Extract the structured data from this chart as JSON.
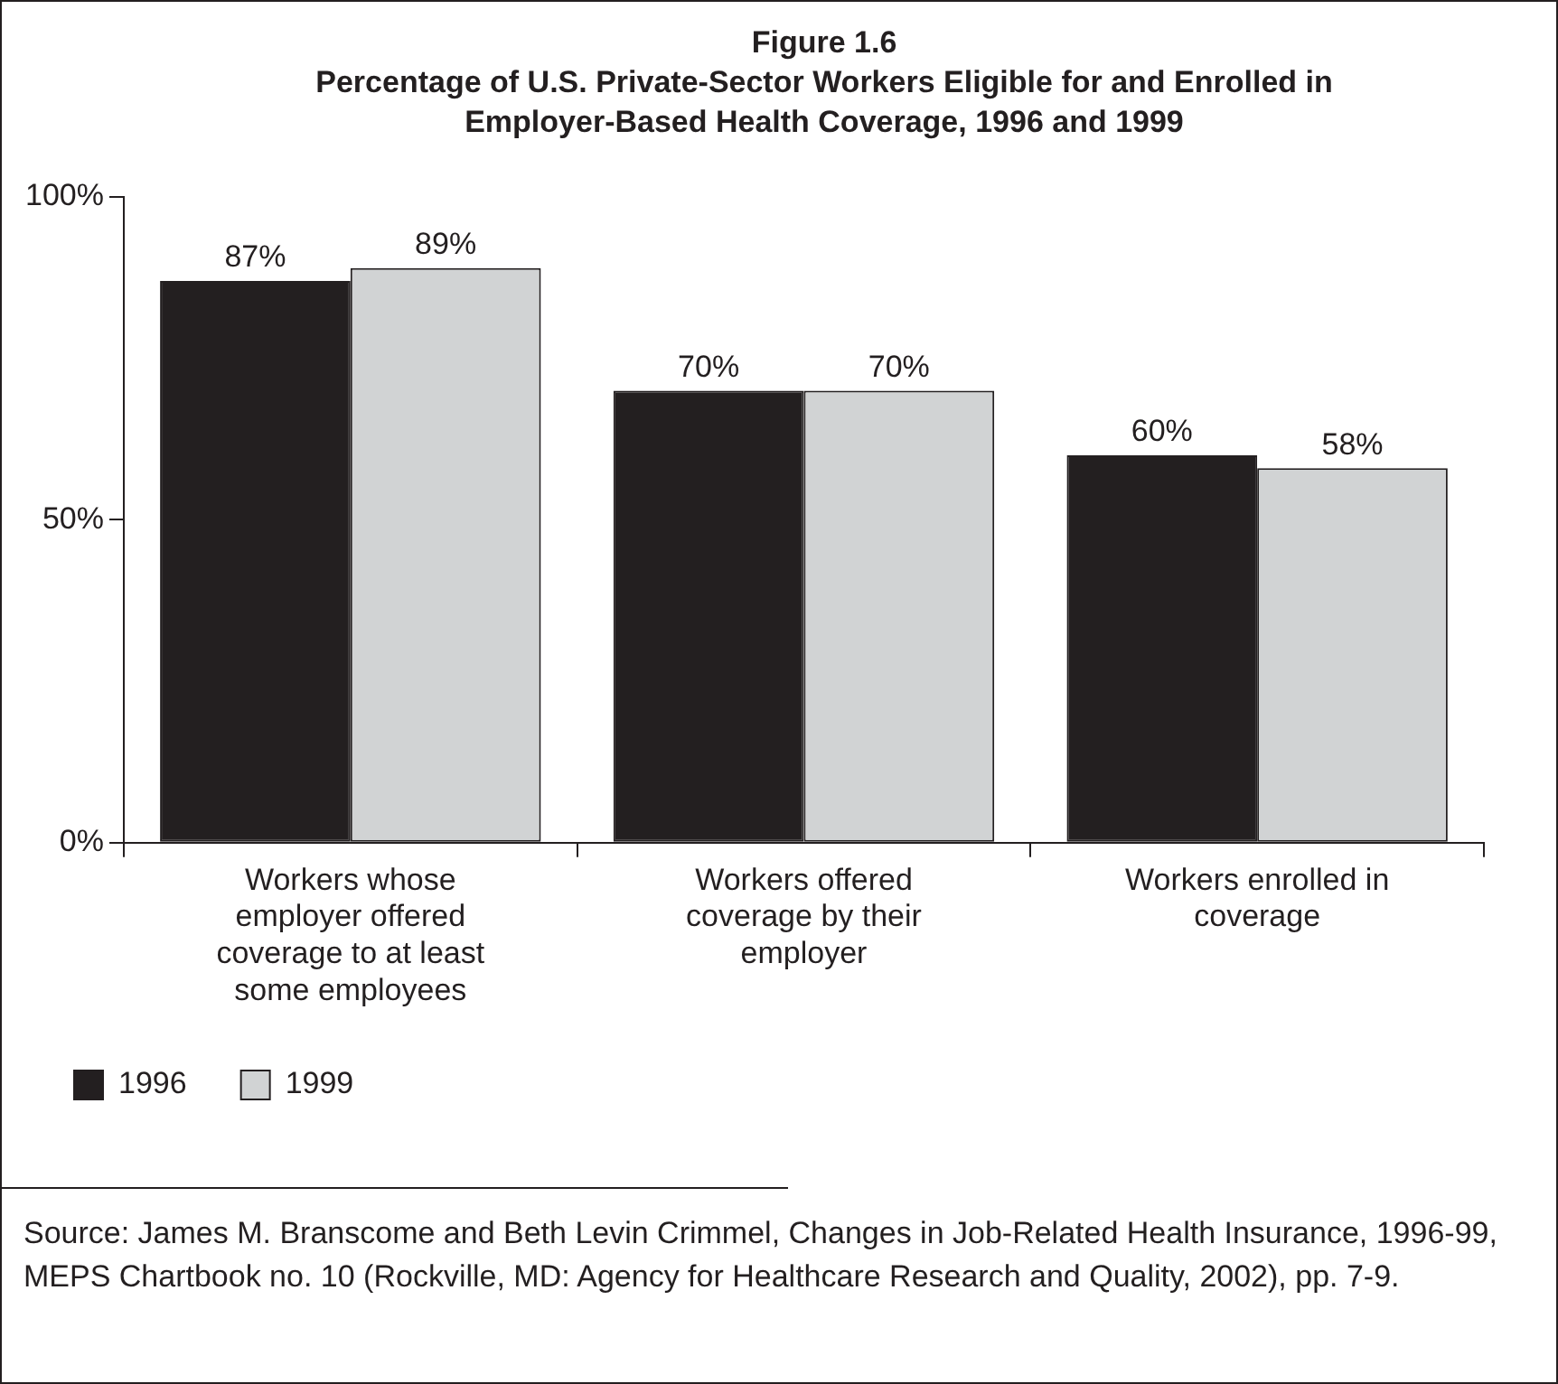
{
  "chart_data": {
    "type": "bar",
    "title": "Figure 1.6",
    "subtitle": "Percentage of U.S. Private-Sector Workers Eligible for and Enrolled in Employer-Based Health Coverage, 1996 and 1999",
    "categories": [
      "Workers whose employer offered coverage to at least some employees",
      "Workers offered coverage by their employer",
      "Workers enrolled in coverage"
    ],
    "series": [
      {
        "name": "1996",
        "color": "#231f20",
        "values": [
          87,
          70,
          60
        ],
        "value_labels": [
          "87%",
          "70%",
          "60%"
        ]
      },
      {
        "name": "1999",
        "color": "#d1d3d4",
        "values": [
          89,
          70,
          58
        ],
        "value_labels": [
          "89%",
          "70%",
          "58%"
        ]
      }
    ],
    "ylim": [
      0,
      100
    ],
    "yticks": [
      {
        "value": 0,
        "label": "0%"
      },
      {
        "value": 50,
        "label": "50%"
      },
      {
        "value": 100,
        "label": "100%"
      }
    ],
    "grid": false,
    "legend": "bottom left",
    "annotations": [
      "Source: James M. Branscome and Beth Levin Crimmel, Changes in Job-Related Health Insurance, 1996-99, MEPS Chartbook no. 10 (Rockville, MD: Agency for Healthcare Research and Quality, 2002), pp. 7-9."
    ]
  }
}
